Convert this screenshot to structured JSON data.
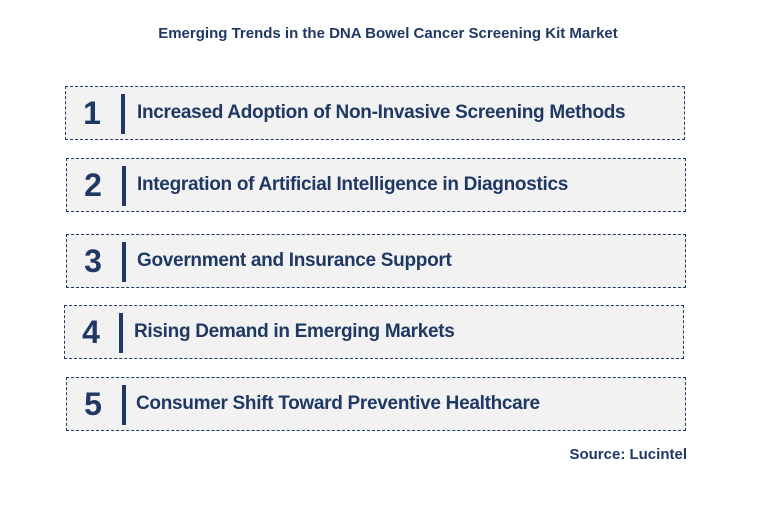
{
  "title": "Emerging Trends in the DNA Bowel Cancer Screening Kit Market",
  "trends": [
    {
      "number": "1",
      "label": "Increased Adoption of Non-Invasive Screening Methods"
    },
    {
      "number": "2",
      "label": "Integration of Artificial Intelligence in Diagnostics"
    },
    {
      "number": "3",
      "label": "Government and Insurance Support"
    },
    {
      "number": "4",
      "label": "Rising Demand in Emerging Markets"
    },
    {
      "number": "5",
      "label": "Consumer Shift Toward Preventive Healthcare"
    }
  ],
  "source": "Source: Lucintel",
  "colors": {
    "text": "#1f3864",
    "row_background": "#f2f2f2",
    "row_border": "#1f3864"
  }
}
